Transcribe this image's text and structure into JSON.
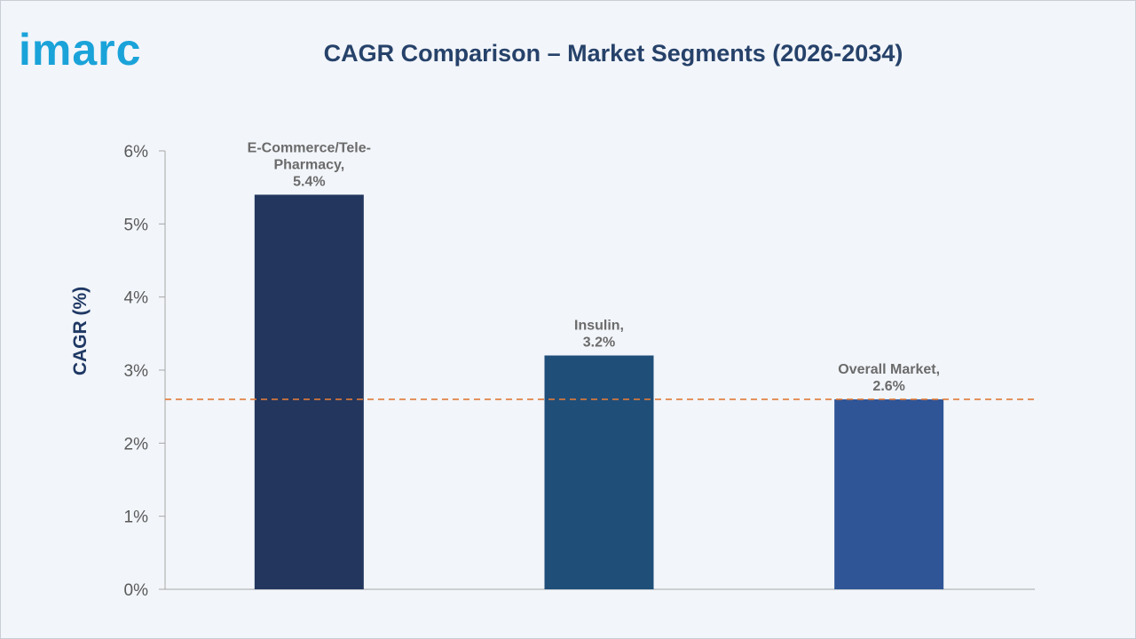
{
  "logo": {
    "text": "imarc",
    "color": "#1aa3d9"
  },
  "chart_data": {
    "type": "bar",
    "title": "CAGR Comparison – Market Segments (2026-2034)",
    "ylabel": "CAGR (%)",
    "xlabel": "",
    "ylim": [
      0,
      6
    ],
    "yticks": [
      0,
      1,
      2,
      3,
      4,
      5,
      6
    ],
    "ytick_suffix": "%",
    "categories": [
      "E-Commerce/Tele-Pharmacy",
      "Insulin",
      "Overall Market"
    ],
    "values": [
      5.4,
      3.2,
      2.6
    ],
    "data_labels": [
      [
        "E-Commerce/Tele-",
        "Pharmacy,",
        "5.4%"
      ],
      [
        "Insulin,",
        "3.2%"
      ],
      [
        "Overall Market,",
        "2.6%"
      ]
    ],
    "bar_colors": [
      "#22365e",
      "#1f4e79",
      "#2f5597"
    ],
    "reference_line": {
      "value": 2.6,
      "style": "dashed",
      "color": "#e07b39"
    },
    "grid": false
  }
}
